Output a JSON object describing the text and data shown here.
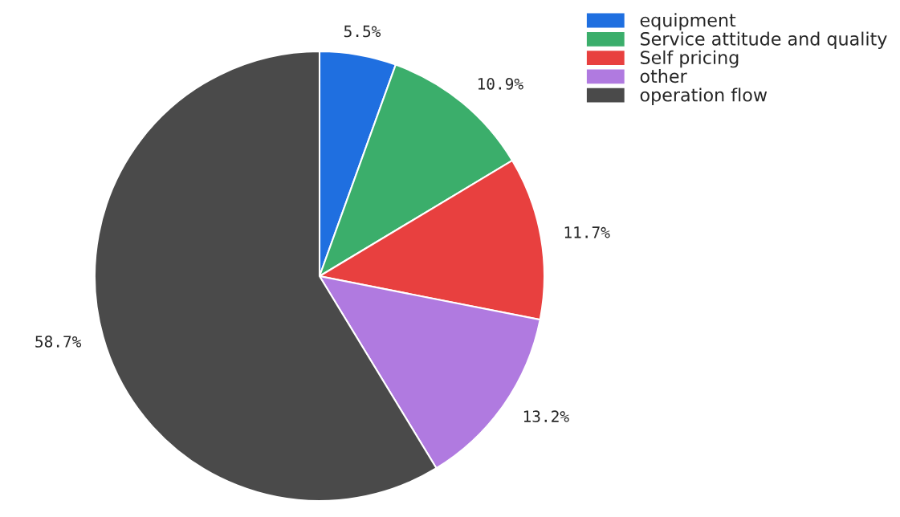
{
  "chart_data": {
    "type": "pie",
    "categories": [
      "equipment",
      "Service attitude and quality",
      "Self pricing",
      "other",
      "operation flow"
    ],
    "values": [
      5.5,
      10.9,
      11.7,
      13.2,
      58.7
    ],
    "value_labels": [
      "5.5%",
      "10.9%",
      "11.7%",
      "13.2%",
      "58.7%"
    ],
    "colors": [
      "#1f6fe0",
      "#3bae6b",
      "#e8403f",
      "#b07ae0",
      "#4a4a4a"
    ],
    "legend": "top right"
  }
}
